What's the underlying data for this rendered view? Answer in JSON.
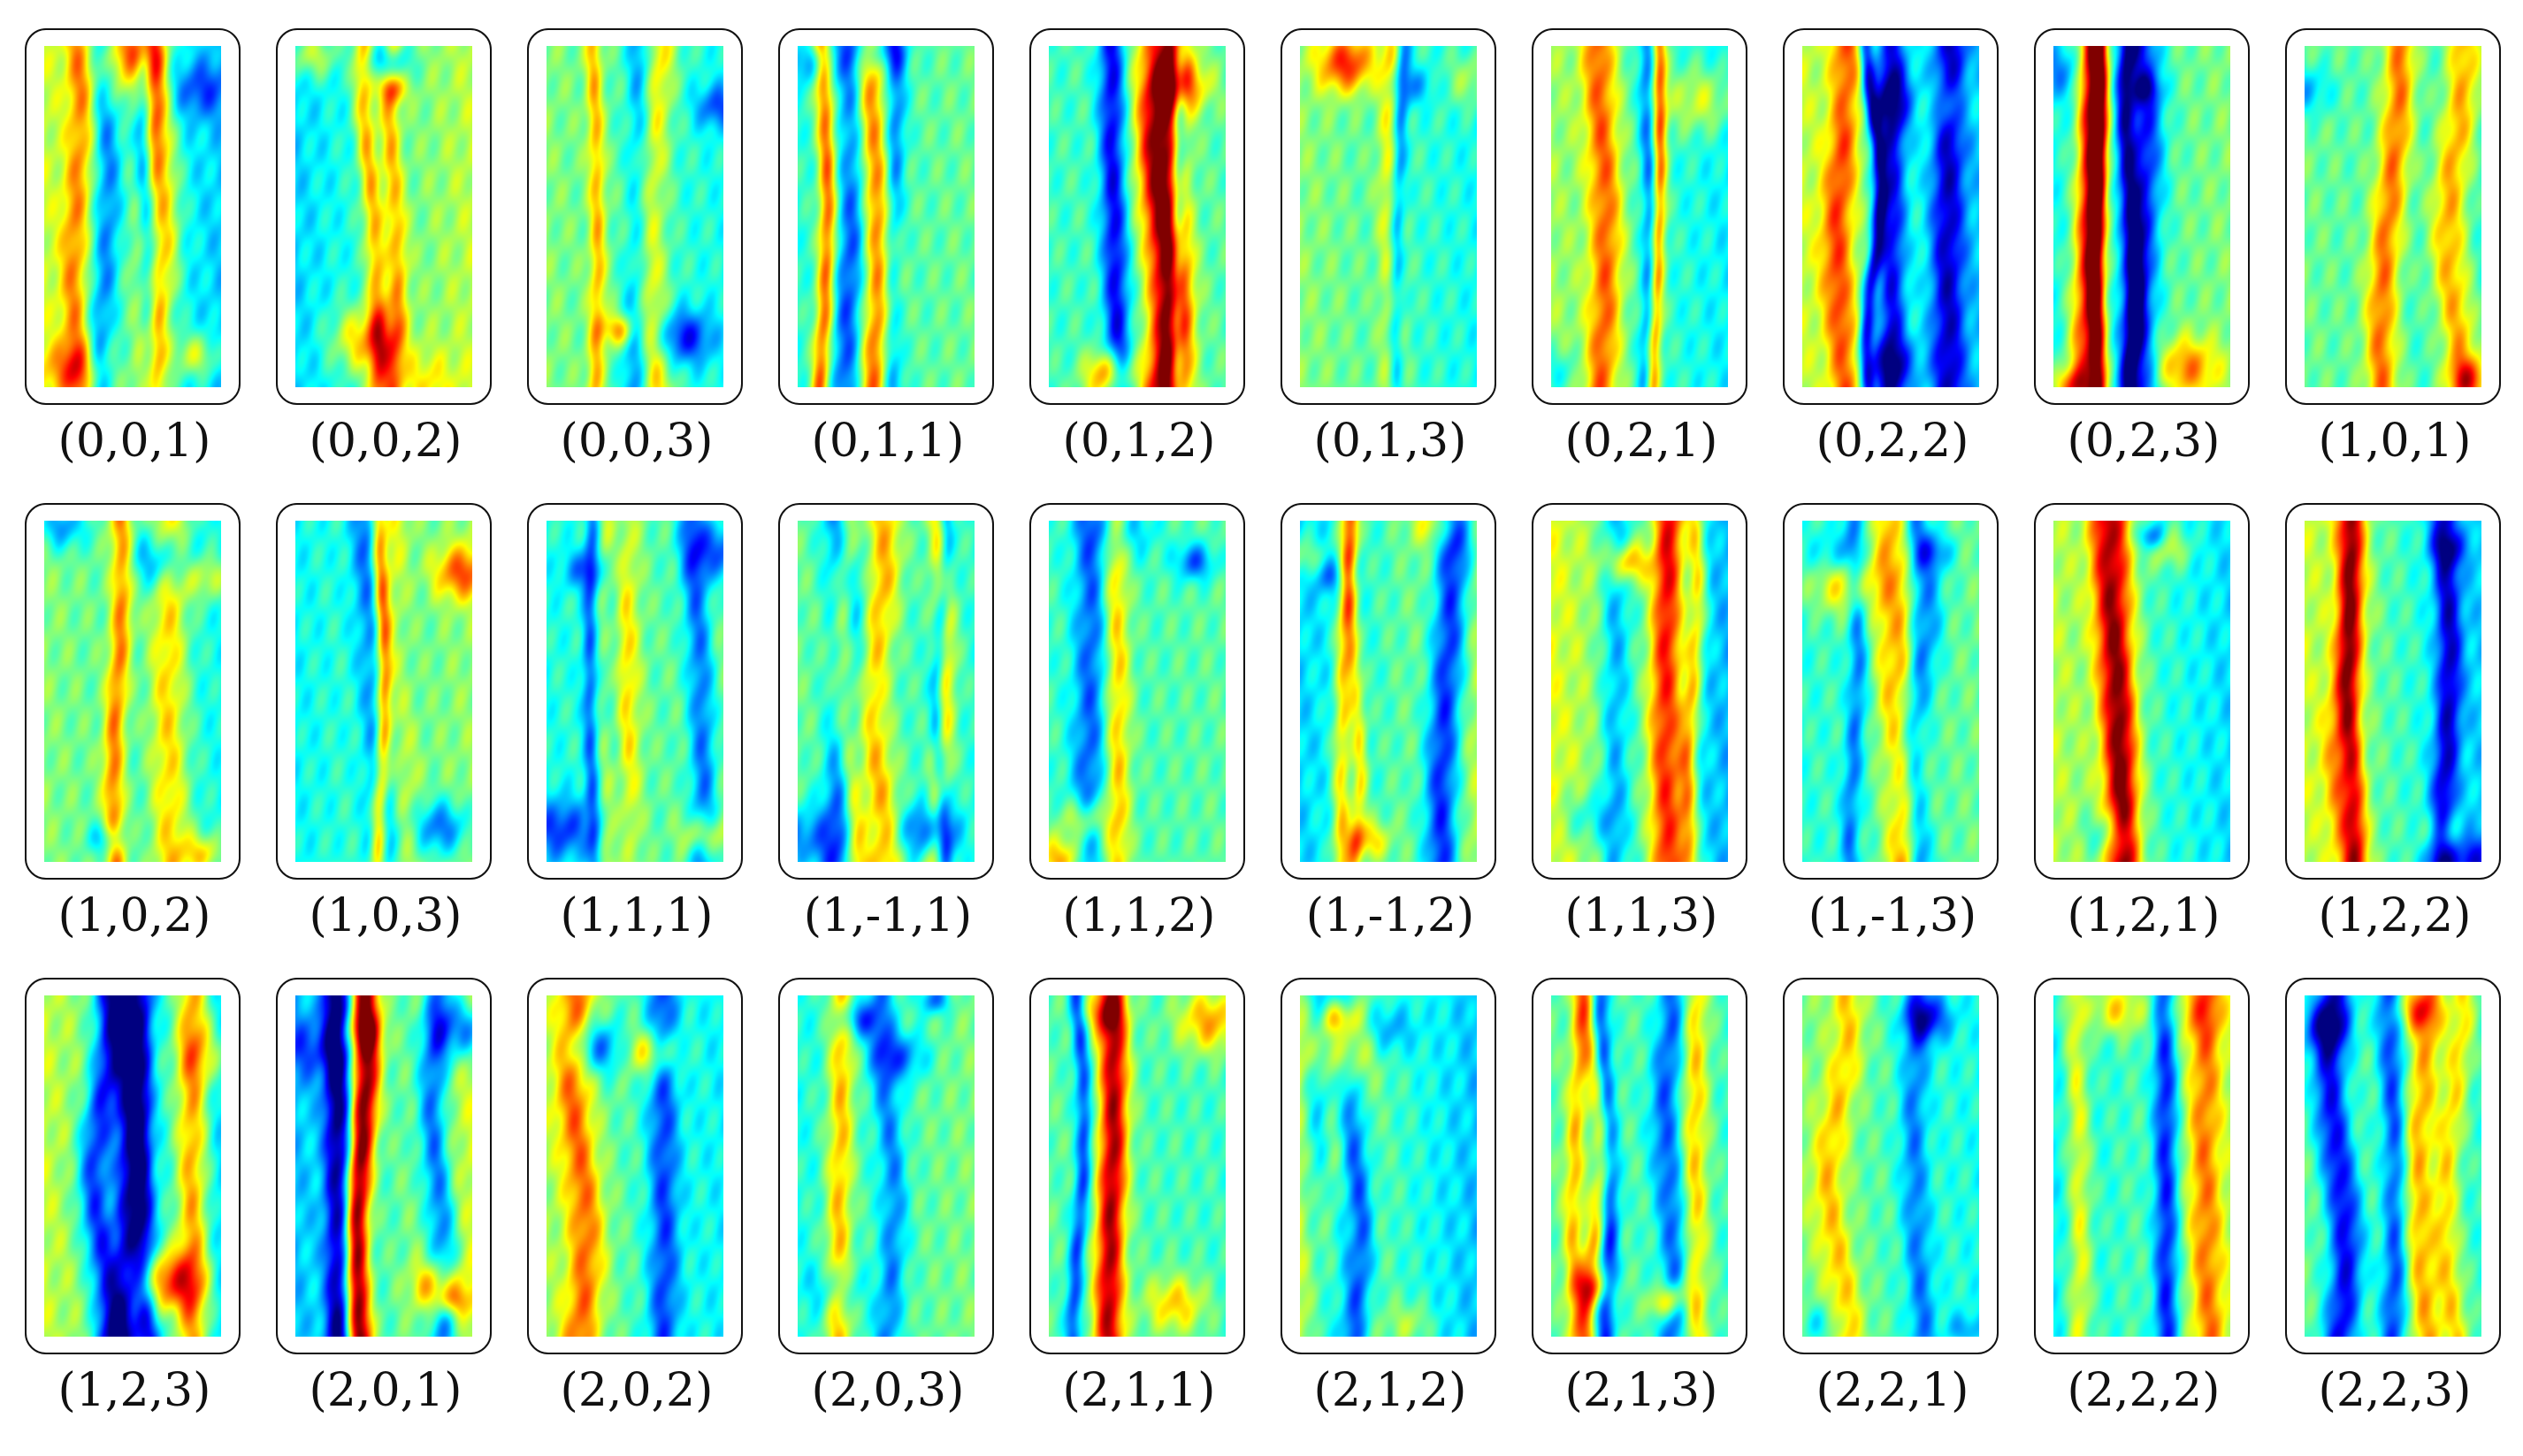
{
  "panels": [
    {
      "label": "(0,0,1)"
    },
    {
      "label": "(0,0,2)"
    },
    {
      "label": "(0,0,3)"
    },
    {
      "label": "(0,1,1)"
    },
    {
      "label": "(0,1,2)"
    },
    {
      "label": "(0,1,3)"
    },
    {
      "label": "(0,2,1)"
    },
    {
      "label": "(0,2,2)"
    },
    {
      "label": "(0,2,3)"
    },
    {
      "label": "(1,0,1)"
    },
    {
      "label": "(1,0,2)"
    },
    {
      "label": "(1,0,3)"
    },
    {
      "label": "(1,1,1)"
    },
    {
      "label": "(1,-1,1)"
    },
    {
      "label": "(1,1,2)"
    },
    {
      "label": "(1,-1,2)"
    },
    {
      "label": "(1,1,3)"
    },
    {
      "label": "(1,-1,3)"
    },
    {
      "label": "(1,2,1)"
    },
    {
      "label": "(1,2,2)"
    },
    {
      "label": "(1,2,3)"
    },
    {
      "label": "(2,0,1)"
    },
    {
      "label": "(2,0,2)"
    },
    {
      "label": "(2,0,3)"
    },
    {
      "label": "(2,1,1)"
    },
    {
      "label": "(2,1,2)"
    },
    {
      "label": "(2,1,3)"
    },
    {
      "label": "(2,2,1)"
    },
    {
      "label": "(2,2,2)"
    },
    {
      "label": "(2,2,3)"
    }
  ],
  "colormap": "jet"
}
